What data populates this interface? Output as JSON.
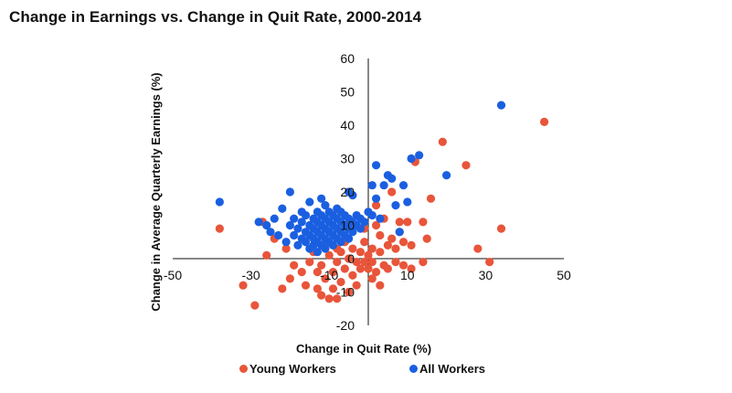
{
  "colors": {
    "young": "#e8553a",
    "all": "#1a5fe0"
  },
  "chart_data": {
    "type": "scatter",
    "title": "Change in Earnings vs. Change in Quit Rate, 2000-2014",
    "xlabel": "Change in Quit Rate (%)",
    "ylabel": "Change in Average Quarterly Earnings (%)",
    "xlim": [
      -50,
      50
    ],
    "ylim": [
      -20,
      60
    ],
    "x_ticks": [
      -50,
      -30,
      -10,
      10,
      30,
      50
    ],
    "y_ticks": [
      -20,
      -10,
      0,
      10,
      20,
      30,
      40,
      50,
      60
    ],
    "x_tick_labels": [
      "-50",
      "-30",
      "-10",
      "10",
      "30",
      "50"
    ],
    "y_tick_labels": [
      "-20",
      "-10",
      "0",
      "10",
      "20",
      "30",
      "40",
      "50",
      "60"
    ],
    "grid": false,
    "legend": "bottom",
    "series": [
      {
        "name": "Young Workers",
        "color": "#e8553a",
        "points": [
          [
            -38,
            9
          ],
          [
            -32,
            -8
          ],
          [
            -29,
            -14
          ],
          [
            -27,
            11
          ],
          [
            -26,
            1
          ],
          [
            -24,
            6
          ],
          [
            -22,
            -9
          ],
          [
            -21,
            3
          ],
          [
            -20,
            -6
          ],
          [
            -19,
            -2
          ],
          [
            -17,
            -4
          ],
          [
            -16,
            -8
          ],
          [
            -15,
            -1
          ],
          [
            -14,
            2
          ],
          [
            -13,
            -4
          ],
          [
            -13,
            -9
          ],
          [
            -12,
            -11
          ],
          [
            -12,
            -2
          ],
          [
            -11,
            4
          ],
          [
            -11,
            -6
          ],
          [
            -10,
            -12
          ],
          [
            -10,
            1
          ],
          [
            -9,
            -4
          ],
          [
            -9,
            -9
          ],
          [
            -8,
            -1
          ],
          [
            -8,
            3
          ],
          [
            -8,
            -12
          ],
          [
            -7,
            2
          ],
          [
            -7,
            -7
          ],
          [
            -6,
            -3
          ],
          [
            -6,
            5
          ],
          [
            -5,
            0
          ],
          [
            -5,
            -10
          ],
          [
            -4,
            3
          ],
          [
            -4,
            -5
          ],
          [
            -3,
            -1
          ],
          [
            -3,
            -8
          ],
          [
            -2,
            2
          ],
          [
            -2,
            -3
          ],
          [
            -1,
            5
          ],
          [
            -1,
            -1
          ],
          [
            -1,
            9
          ],
          [
            0,
            -3
          ],
          [
            0,
            1
          ],
          [
            1,
            -6
          ],
          [
            1,
            3
          ],
          [
            1,
            -1
          ],
          [
            2,
            10
          ],
          [
            2,
            16
          ],
          [
            2,
            -4
          ],
          [
            3,
            2
          ],
          [
            3,
            7
          ],
          [
            3,
            -8
          ],
          [
            4,
            -2
          ],
          [
            4,
            12
          ],
          [
            5,
            4
          ],
          [
            5,
            -3
          ],
          [
            6,
            6
          ],
          [
            6,
            20
          ],
          [
            7,
            3
          ],
          [
            7,
            -1
          ],
          [
            8,
            8
          ],
          [
            8,
            11
          ],
          [
            9,
            -2
          ],
          [
            9,
            5
          ],
          [
            10,
            11
          ],
          [
            11,
            -3
          ],
          [
            11,
            4
          ],
          [
            12,
            29
          ],
          [
            14,
            -1
          ],
          [
            14,
            11
          ],
          [
            15,
            6
          ],
          [
            16,
            18
          ],
          [
            19,
            35
          ],
          [
            25,
            28
          ],
          [
            28,
            3
          ],
          [
            31,
            -1
          ],
          [
            34,
            9
          ],
          [
            45,
            41
          ]
        ]
      },
      {
        "name": "All Workers",
        "color": "#1a5fe0",
        "points": [
          [
            -38,
            17
          ],
          [
            -28,
            11
          ],
          [
            -26,
            10
          ],
          [
            -25,
            8
          ],
          [
            -24,
            12
          ],
          [
            -23,
            7
          ],
          [
            -22,
            15
          ],
          [
            -21,
            5
          ],
          [
            -20,
            10
          ],
          [
            -20,
            20
          ],
          [
            -19,
            7
          ],
          [
            -19,
            12
          ],
          [
            -18,
            4
          ],
          [
            -18,
            9
          ],
          [
            -17,
            6
          ],
          [
            -17,
            11
          ],
          [
            -17,
            14
          ],
          [
            -16,
            5
          ],
          [
            -16,
            8
          ],
          [
            -16,
            13
          ],
          [
            -15,
            3
          ],
          [
            -15,
            7
          ],
          [
            -15,
            10
          ],
          [
            -15,
            17
          ],
          [
            -14,
            4
          ],
          [
            -14,
            6
          ],
          [
            -14,
            9
          ],
          [
            -14,
            12
          ],
          [
            -13,
            2
          ],
          [
            -13,
            5
          ],
          [
            -13,
            8
          ],
          [
            -13,
            11
          ],
          [
            -13,
            14
          ],
          [
            -12,
            4
          ],
          [
            -12,
            7
          ],
          [
            -12,
            10
          ],
          [
            -12,
            13
          ],
          [
            -12,
            18
          ],
          [
            -11,
            3
          ],
          [
            -11,
            6
          ],
          [
            -11,
            9
          ],
          [
            -11,
            12
          ],
          [
            -11,
            16
          ],
          [
            -10,
            5
          ],
          [
            -10,
            8
          ],
          [
            -10,
            11
          ],
          [
            -10,
            14
          ],
          [
            -9,
            4
          ],
          [
            -9,
            7
          ],
          [
            -9,
            10
          ],
          [
            -9,
            13
          ],
          [
            -8,
            6
          ],
          [
            -8,
            9
          ],
          [
            -8,
            12
          ],
          [
            -8,
            15
          ],
          [
            -7,
            5
          ],
          [
            -7,
            8
          ],
          [
            -7,
            11
          ],
          [
            -7,
            14
          ],
          [
            -6,
            7
          ],
          [
            -6,
            10
          ],
          [
            -6,
            13
          ],
          [
            -5,
            6
          ],
          [
            -5,
            9
          ],
          [
            -5,
            12
          ],
          [
            -5,
            20
          ],
          [
            -4,
            8
          ],
          [
            -4,
            11
          ],
          [
            -4,
            19
          ],
          [
            -3,
            10
          ],
          [
            -3,
            13
          ],
          [
            -2,
            9
          ],
          [
            -2,
            12
          ],
          [
            -1,
            11
          ],
          [
            0,
            14
          ],
          [
            1,
            13
          ],
          [
            1,
            22
          ],
          [
            2,
            18
          ],
          [
            2,
            28
          ],
          [
            3,
            12
          ],
          [
            4,
            22
          ],
          [
            5,
            25
          ],
          [
            6,
            24
          ],
          [
            7,
            16
          ],
          [
            8,
            8
          ],
          [
            9,
            22
          ],
          [
            10,
            17
          ],
          [
            11,
            30
          ],
          [
            13,
            31
          ],
          [
            20,
            25
          ],
          [
            34,
            46
          ]
        ]
      }
    ]
  },
  "legend_items": [
    {
      "key": "young",
      "label": "Young Workers"
    },
    {
      "key": "all",
      "label": "All Workers"
    }
  ]
}
